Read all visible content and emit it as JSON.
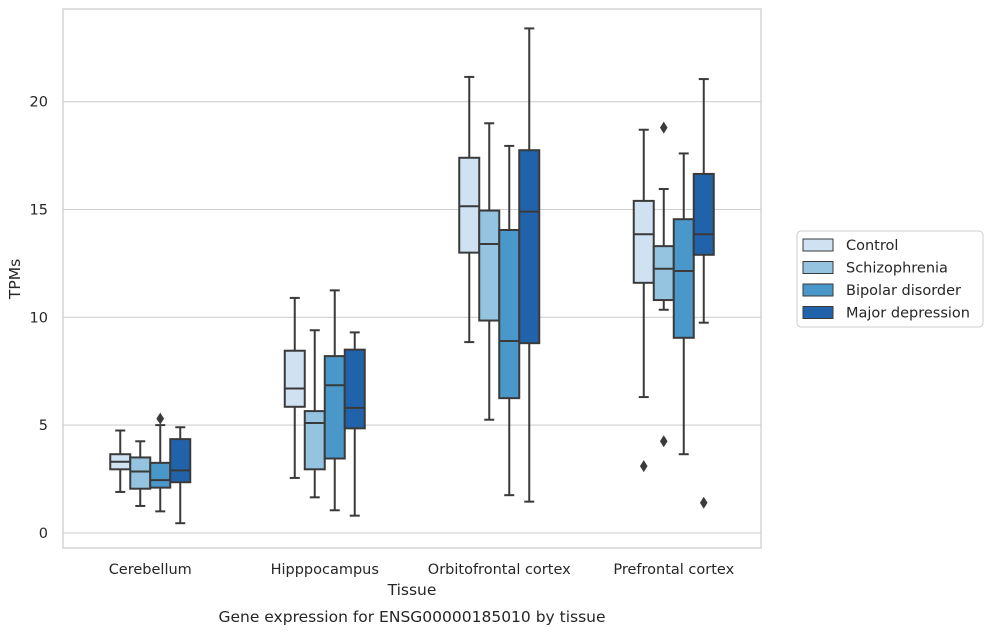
{
  "caption": "Gene expression for ENSG00000185010 by tissue",
  "chart_data": {
    "type": "box",
    "xlabel": "Tissue",
    "ylabel": "TPMs",
    "ylim": [
      -0.7,
      24.3
    ],
    "yticks": [
      0,
      5,
      10,
      15,
      20
    ],
    "grid": "horizontal",
    "legend_placement": "right-outside",
    "categories": [
      "Cerebellum",
      "Hipppocampus",
      "Orbitofrontal cortex",
      "Prefrontal cortex"
    ],
    "series": [
      {
        "name": "Control",
        "color": "#d0e1f2",
        "boxes": [
          {
            "whislo": 1.9,
            "q1": 2.95,
            "med": 3.3,
            "q3": 3.65,
            "whishi": 4.75,
            "fliers": []
          },
          {
            "whislo": 2.55,
            "q1": 5.85,
            "med": 6.7,
            "q3": 8.45,
            "whishi": 10.9,
            "fliers": []
          },
          {
            "whislo": 8.85,
            "q1": 13.0,
            "med": 15.15,
            "q3": 17.4,
            "whishi": 21.15,
            "fliers": []
          },
          {
            "whislo": 6.3,
            "q1": 11.6,
            "med": 13.85,
            "q3": 15.4,
            "whishi": 18.7,
            "fliers": [
              3.1
            ]
          }
        ]
      },
      {
        "name": "Schizophrenia",
        "color": "#94c4df",
        "boxes": [
          {
            "whislo": 1.25,
            "q1": 2.05,
            "med": 2.85,
            "q3": 3.5,
            "whishi": 4.25,
            "fliers": []
          },
          {
            "whislo": 1.65,
            "q1": 2.95,
            "med": 5.1,
            "q3": 5.65,
            "whishi": 9.4,
            "fliers": []
          },
          {
            "whislo": 5.25,
            "q1": 9.85,
            "med": 13.4,
            "q3": 14.95,
            "whishi": 19.0,
            "fliers": []
          },
          {
            "whislo": 10.35,
            "q1": 10.8,
            "med": 12.25,
            "q3": 13.3,
            "whishi": 15.95,
            "fliers": [
              18.8,
              4.25
            ]
          }
        ]
      },
      {
        "name": "Bipolar disorder",
        "color": "#4a98c9",
        "boxes": [
          {
            "whislo": 1.0,
            "q1": 2.1,
            "med": 2.45,
            "q3": 3.25,
            "whishi": 5.0,
            "fliers": [
              5.3
            ]
          },
          {
            "whislo": 1.05,
            "q1": 3.45,
            "med": 6.85,
            "q3": 8.2,
            "whishi": 11.25,
            "fliers": []
          },
          {
            "whislo": 1.75,
            "q1": 6.25,
            "med": 8.9,
            "q3": 14.05,
            "whishi": 17.95,
            "fliers": []
          },
          {
            "whislo": 3.65,
            "q1": 9.05,
            "med": 12.15,
            "q3": 14.55,
            "whishi": 17.6,
            "fliers": []
          }
        ]
      },
      {
        "name": "Major depression",
        "color": "#2163aa",
        "boxes": [
          {
            "whislo": 0.45,
            "q1": 2.35,
            "med": 2.9,
            "q3": 4.35,
            "whishi": 4.9,
            "fliers": []
          },
          {
            "whislo": 0.8,
            "q1": 4.85,
            "med": 5.8,
            "q3": 8.5,
            "whishi": 9.3,
            "fliers": []
          },
          {
            "whislo": 1.45,
            "q1": 8.8,
            "med": 14.9,
            "q3": 17.75,
            "whishi": 23.4,
            "fliers": []
          },
          {
            "whislo": 9.75,
            "q1": 12.9,
            "med": 13.85,
            "q3": 16.65,
            "whishi": 21.05,
            "fliers": [
              1.4
            ]
          }
        ]
      }
    ]
  }
}
